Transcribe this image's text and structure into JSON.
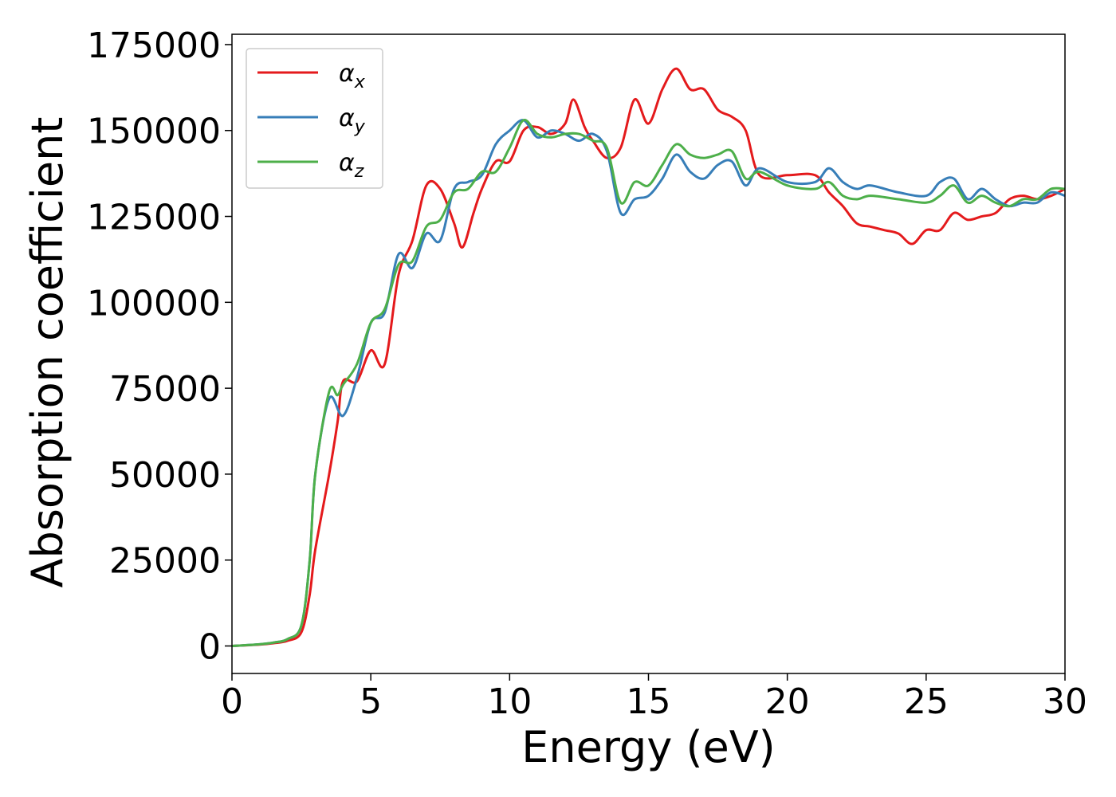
{
  "chart_data": {
    "type": "line",
    "xlabel": "Energy (eV)",
    "ylabel": "Absorption coefficient",
    "xlim": [
      0,
      30
    ],
    "ylim": [
      -8000,
      178000
    ],
    "xticks": [
      "0",
      "5",
      "10",
      "15",
      "20",
      "25",
      "30"
    ],
    "yticks": [
      "0",
      "25000",
      "50000",
      "75000",
      "100000",
      "125000",
      "150000",
      "175000"
    ],
    "grid": false,
    "legend_position": "top-left",
    "series": [
      {
        "name": "αx",
        "base": "α",
        "sub": "x",
        "color": "#e41a1c",
        "x": [
          0,
          1,
          1.5,
          2,
          2.5,
          2.8,
          3,
          3.5,
          3.8,
          4,
          4.5,
          5,
          5.5,
          6,
          6.5,
          7,
          7.5,
          8,
          8.3,
          8.7,
          9,
          9.5,
          10,
          10.5,
          11,
          11.5,
          12,
          12.3,
          12.7,
          13,
          13.5,
          14,
          14.5,
          15,
          15.5,
          16,
          16.5,
          17,
          17.5,
          18,
          18.5,
          19,
          20,
          21,
          21.5,
          22,
          22.5,
          23,
          23.5,
          24,
          24.5,
          25,
          25.5,
          26,
          26.5,
          27,
          27.5,
          28,
          28.5,
          29,
          29.5,
          30
        ],
        "y": [
          0,
          400,
          800,
          1500,
          4000,
          15000,
          28000,
          50000,
          65000,
          77000,
          77000,
          86000,
          82000,
          108000,
          118000,
          134000,
          133000,
          123000,
          116000,
          126000,
          133000,
          141000,
          141000,
          150000,
          151000,
          149000,
          152000,
          159000,
          151000,
          147000,
          142000,
          145000,
          159000,
          152000,
          162000,
          168000,
          162000,
          162000,
          156000,
          154000,
          150000,
          137000,
          137000,
          137000,
          132000,
          128000,
          123000,
          122000,
          121000,
          120000,
          117000,
          121000,
          121000,
          126000,
          124000,
          125000,
          126000,
          130000,
          131000,
          130000,
          131000,
          133000
        ]
      },
      {
        "name": "αy",
        "base": "α",
        "sub": "y",
        "color": "#377eb8",
        "x": [
          0,
          1,
          1.5,
          2,
          2.5,
          2.8,
          3,
          3.5,
          4,
          4.5,
          5,
          5.5,
          6,
          6.5,
          7,
          7.5,
          8,
          8.5,
          9,
          9.5,
          10,
          10.5,
          11,
          11.5,
          12,
          12.5,
          13,
          13.5,
          14,
          14.5,
          15,
          15.5,
          16,
          16.5,
          17,
          17.5,
          18,
          18.5,
          19,
          20,
          21,
          21.5,
          22,
          22.5,
          23,
          24,
          25,
          25.5,
          26,
          26.5,
          27,
          27.5,
          28,
          28.5,
          29,
          29.5,
          30
        ],
        "y": [
          0,
          500,
          1000,
          2000,
          6000,
          25000,
          50000,
          72000,
          67000,
          78000,
          94000,
          97000,
          114000,
          110000,
          120000,
          118000,
          133000,
          135000,
          137000,
          146000,
          150000,
          153000,
          148000,
          150000,
          149000,
          147000,
          149000,
          144000,
          126000,
          130000,
          131000,
          136000,
          143000,
          138000,
          136000,
          140000,
          141000,
          134000,
          139000,
          135000,
          135000,
          139000,
          135000,
          133000,
          134000,
          132000,
          131000,
          135000,
          136000,
          130000,
          133000,
          130000,
          128000,
          129000,
          129000,
          132000,
          131000
        ]
      },
      {
        "name": "αz",
        "base": "α",
        "sub": "z",
        "color": "#4daf4a",
        "x": [
          0,
          1,
          1.5,
          2,
          2.5,
          2.8,
          3,
          3.5,
          3.8,
          4,
          4.5,
          5,
          5.5,
          6,
          6.5,
          7,
          7.5,
          8,
          8.5,
          9,
          9.5,
          10,
          10.5,
          11,
          11.5,
          12,
          12.5,
          13,
          13.5,
          14,
          14.5,
          15,
          15.5,
          16,
          16.5,
          17,
          17.5,
          18,
          18.5,
          19,
          20,
          21,
          21.5,
          22,
          22.5,
          23,
          24,
          25,
          25.5,
          26,
          26.5,
          27,
          27.5,
          28,
          28.5,
          29,
          29.5,
          30
        ],
        "y": [
          0,
          500,
          1000,
          2000,
          6000,
          25000,
          50000,
          74000,
          73000,
          76000,
          82000,
          94000,
          98000,
          111000,
          112000,
          122000,
          124000,
          132000,
          133000,
          138000,
          138000,
          145000,
          153000,
          149000,
          148000,
          149000,
          149000,
          147000,
          145000,
          129000,
          135000,
          134000,
          140000,
          146000,
          143000,
          142000,
          143000,
          144000,
          136000,
          138000,
          134000,
          133000,
          135000,
          131000,
          130000,
          131000,
          130000,
          129000,
          131000,
          134000,
          129000,
          131000,
          129000,
          128000,
          130000,
          130000,
          133000,
          133000
        ]
      }
    ]
  }
}
